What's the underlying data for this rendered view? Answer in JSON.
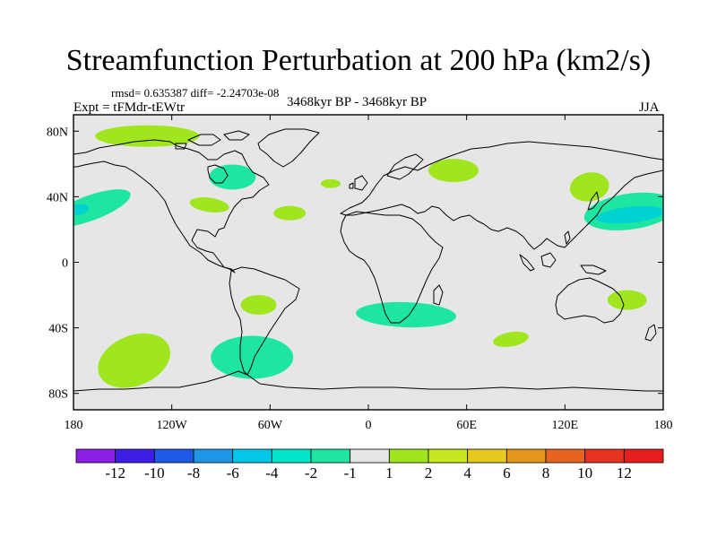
{
  "header": {
    "title": "Streamfunction Perturbation at 200 hPa (km2/s)",
    "stats": "rmsd= 0.635387 diff= -2.24703e-08",
    "experiment": "Expt = tFMdr-tEWtr",
    "period": "3468kyr BP - 3468kyr BP",
    "season": "JJA"
  },
  "map": {
    "projection": "cylindrical equidistant",
    "ocean_color": "#e6e6e6",
    "coastline_color": "#000000",
    "lat_labels": [
      "80N",
      "40N",
      "0",
      "40S",
      "80S"
    ],
    "lon_labels": [
      "180",
      "120W",
      "60W",
      "0",
      "60E",
      "120E",
      "180"
    ],
    "anomalies": [
      {
        "name": "north-atlantic-arctic",
        "level": "1 to 2",
        "color": "#a0e61e",
        "lon": -135,
        "lat": 77
      },
      {
        "name": "north-pacific-east",
        "level": "-2 to -1",
        "color": "#1ee6a0",
        "lon": -170,
        "lat": 33
      },
      {
        "name": "north-pacific-east-core",
        "level": "-4 to -2",
        "color": "#00d2d2",
        "lon": -178,
        "lat": 32
      },
      {
        "name": "hudson-bay",
        "level": "-2 to -1",
        "color": "#1ee6a0",
        "lon": -83,
        "lat": 52
      },
      {
        "name": "us-east",
        "level": "1 to 2",
        "color": "#a0e61e",
        "lon": -97,
        "lat": 35
      },
      {
        "name": "north-atlantic",
        "level": "1 to 2",
        "color": "#a0e61e",
        "lon": -48,
        "lat": 30
      },
      {
        "name": "europe-west",
        "level": "1 to 2",
        "color": "#a0e61e",
        "lon": -23,
        "lat": 48
      },
      {
        "name": "russia-west",
        "level": "1 to 2",
        "color": "#a0e61e",
        "lon": 52,
        "lat": 56
      },
      {
        "name": "east-asia",
        "level": "1 to 2",
        "color": "#a0e61e",
        "lon": 135,
        "lat": 46
      },
      {
        "name": "west-pacific",
        "level": "-2 to -1",
        "color": "#1ee6a0",
        "lon": 160,
        "lat": 31
      },
      {
        "name": "west-pacific-core",
        "level": "-4 to -2",
        "color": "#00d2d2",
        "lon": 160,
        "lat": 29
      },
      {
        "name": "south-america-central",
        "level": "1 to 2",
        "color": "#a0e61e",
        "lon": -67,
        "lat": -26
      },
      {
        "name": "south-pacific",
        "level": "1 to 2",
        "color": "#a0e61e",
        "lon": -143,
        "lat": -60
      },
      {
        "name": "drake-passage",
        "level": "-2 to -1",
        "color": "#1ee6a0",
        "lon": -71,
        "lat": -58
      },
      {
        "name": "south-africa",
        "level": "-2 to -1",
        "color": "#1ee6a0",
        "lon": 23,
        "lat": -32
      },
      {
        "name": "south-indian",
        "level": "1 to 2",
        "color": "#a0e61e",
        "lon": 87,
        "lat": -47
      },
      {
        "name": "east-australia",
        "level": "1 to 2",
        "color": "#a0e61e",
        "lon": 158,
        "lat": -23
      }
    ]
  },
  "colorbar": {
    "labels": [
      "-12",
      "-10",
      "-8",
      "-6",
      "-4",
      "-2",
      "-1",
      "1",
      "2",
      "4",
      "6",
      "8",
      "10",
      "12"
    ],
    "colors": [
      "#8c1ee6",
      "#3c1ee6",
      "#1e5ae6",
      "#1e96e6",
      "#00c8e6",
      "#00e6c8",
      "#1ee6a0",
      "#e6e6e6",
      "#a0e61e",
      "#c8e61e",
      "#e6c81e",
      "#e6961e",
      "#e6641e",
      "#e6321e",
      "#e61e1e"
    ]
  }
}
